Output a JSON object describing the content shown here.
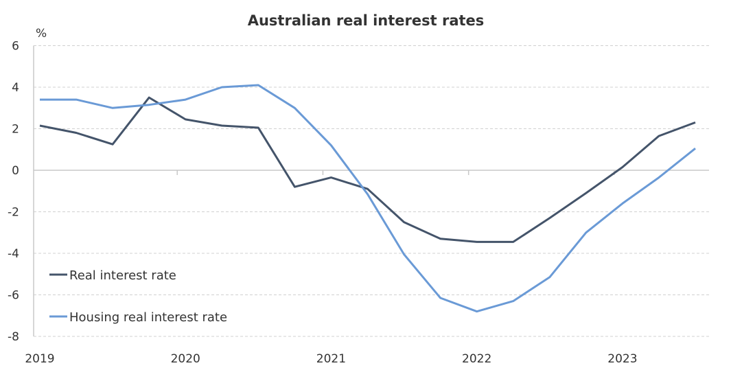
{
  "chart_data": {
    "type": "line",
    "title": "Australian real interest rates",
    "ylabel": "%",
    "xlabel": "",
    "ylim": [
      -8,
      6
    ],
    "yticks": [
      6,
      4,
      2,
      0,
      -2,
      -4,
      -6,
      -8
    ],
    "xtick_labels": [
      "2019",
      "2020",
      "2021",
      "2022",
      "2023"
    ],
    "x": [
      "2019Q1",
      "2019Q2",
      "2019Q3",
      "2019Q4",
      "2020Q1",
      "2020Q2",
      "2020Q3",
      "2020Q4",
      "2021Q1",
      "2021Q2",
      "2021Q3",
      "2021Q4",
      "2022Q1",
      "2022Q2",
      "2022Q3",
      "2022Q4",
      "2023Q1",
      "2023Q2",
      "2023Q3"
    ],
    "grid": true,
    "legend_position": "bottom-left",
    "series": [
      {
        "name": "Real interest rate",
        "color": "#44546A",
        "values": [
          2.15,
          1.8,
          1.25,
          3.5,
          2.45,
          2.15,
          2.05,
          -0.8,
          -0.35,
          -0.9,
          -2.5,
          -3.3,
          -3.45,
          -3.45,
          -2.3,
          -1.1,
          0.15,
          1.65,
          2.3
        ]
      },
      {
        "name": "Housing real interest rate",
        "color": "#6A9AD6",
        "values": [
          3.4,
          3.4,
          3.0,
          3.15,
          3.4,
          4.0,
          4.1,
          3.0,
          1.2,
          -1.15,
          -4.05,
          -6.15,
          -6.8,
          -6.3,
          -5.15,
          -3.0,
          -1.6,
          -0.35,
          1.05
        ]
      }
    ]
  }
}
